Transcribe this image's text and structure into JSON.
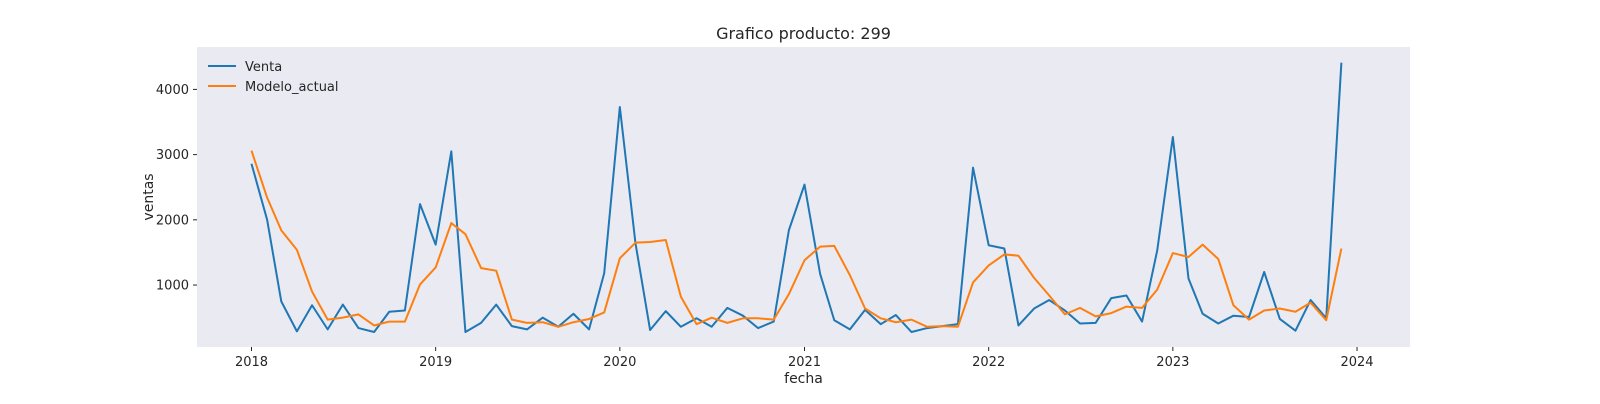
{
  "chart_data": {
    "type": "line",
    "title": "Grafico producto: 299",
    "xlabel": "fecha",
    "ylabel": "ventas",
    "x_ticks": [
      "2018",
      "2019",
      "2020",
      "2021",
      "2022",
      "2023",
      "2024"
    ],
    "y_ticks": [
      1000,
      2000,
      3000,
      4000
    ],
    "ylim": [
      50,
      4650
    ],
    "xlim": [
      "2017-09-15",
      "2024-04-15"
    ],
    "grid": false,
    "legend_placement": "upper-left",
    "x": [
      "2018-01-01",
      "2018-02-01",
      "2018-03-01",
      "2018-04-01",
      "2018-05-01",
      "2018-06-01",
      "2018-07-01",
      "2018-08-01",
      "2018-09-01",
      "2018-10-01",
      "2018-11-01",
      "2018-12-01",
      "2019-01-01",
      "2019-02-01",
      "2019-03-01",
      "2019-04-01",
      "2019-05-01",
      "2019-06-01",
      "2019-07-01",
      "2019-08-01",
      "2019-09-01",
      "2019-10-01",
      "2019-11-01",
      "2019-12-01",
      "2020-01-01",
      "2020-02-01",
      "2020-03-01",
      "2020-04-01",
      "2020-05-01",
      "2020-06-01",
      "2020-07-01",
      "2020-08-01",
      "2020-09-01",
      "2020-10-01",
      "2020-11-01",
      "2020-12-01",
      "2021-01-01",
      "2021-02-01",
      "2021-03-01",
      "2021-04-01",
      "2021-05-01",
      "2021-06-01",
      "2021-07-01",
      "2021-08-01",
      "2021-09-01",
      "2021-10-01",
      "2021-11-01",
      "2021-12-01",
      "2022-01-01",
      "2022-02-01",
      "2022-03-01",
      "2022-04-01",
      "2022-05-01",
      "2022-06-01",
      "2022-07-01",
      "2022-08-01",
      "2022-09-01",
      "2022-10-01",
      "2022-11-01",
      "2022-12-01",
      "2023-01-01",
      "2023-02-01",
      "2023-03-01",
      "2023-04-01",
      "2023-05-01",
      "2023-06-01",
      "2023-07-01",
      "2023-08-01",
      "2023-09-01",
      "2023-10-01",
      "2023-11-01",
      "2023-12-01"
    ],
    "series": [
      {
        "name": "Venta",
        "color": "#1f77b4",
        "values": [
          2860,
          2000,
          750,
          290,
          690,
          320,
          700,
          340,
          280,
          590,
          610,
          2240,
          1620,
          3050,
          280,
          420,
          700,
          370,
          320,
          500,
          360,
          560,
          320,
          1180,
          3730,
          1640,
          310,
          600,
          360,
          490,
          360,
          650,
          530,
          340,
          440,
          1840,
          2540,
          1170,
          460,
          320,
          620,
          400,
          540,
          280,
          340,
          370,
          400,
          2800,
          1610,
          1560,
          380,
          640,
          770,
          610,
          410,
          420,
          800,
          840,
          440,
          1530,
          3270,
          1100,
          560,
          410,
          530,
          510,
          1200,
          480,
          300,
          770,
          490,
          4410
        ]
      },
      {
        "name": "Modelo_actual",
        "color": "#ff7f0e",
        "values": [
          3060,
          2340,
          1840,
          1540,
          900,
          470,
          500,
          550,
          380,
          440,
          440,
          1010,
          1270,
          1950,
          1780,
          1260,
          1220,
          470,
          420,
          430,
          360,
          430,
          480,
          580,
          1410,
          1650,
          1660,
          1690,
          820,
          400,
          500,
          420,
          490,
          490,
          470,
          860,
          1380,
          1590,
          1600,
          1150,
          640,
          490,
          430,
          470,
          360,
          370,
          360,
          1040,
          1300,
          1470,
          1450,
          1110,
          840,
          550,
          650,
          520,
          570,
          670,
          650,
          930,
          1490,
          1430,
          1620,
          1400,
          690,
          470,
          610,
          640,
          590,
          730,
          460,
          1560
        ]
      }
    ]
  }
}
